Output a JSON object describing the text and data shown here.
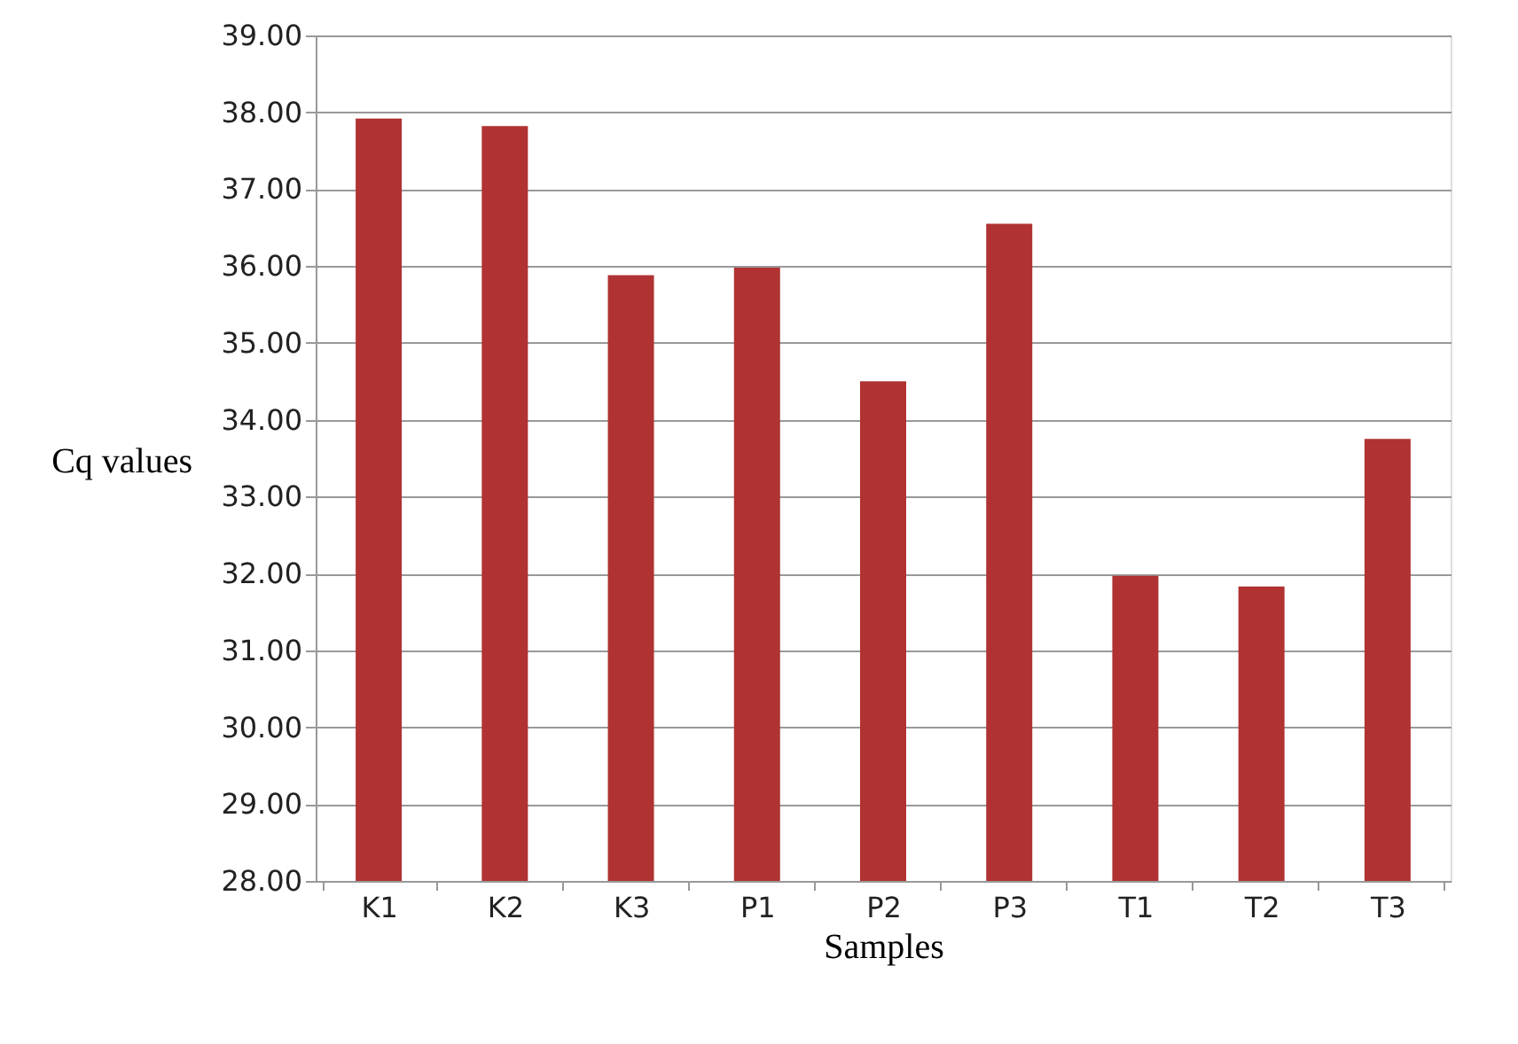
{
  "chart_data": {
    "type": "bar",
    "xlabel": "Samples",
    "ylabel": "Cq values",
    "categories": [
      "K1",
      "K2",
      "K3",
      "P1",
      "P2",
      "P3",
      "T1",
      "T2",
      "T3"
    ],
    "values": [
      37.92,
      37.82,
      35.88,
      35.98,
      34.5,
      36.55,
      31.97,
      31.83,
      33.75
    ],
    "color": "#b03232",
    "ylim": [
      28,
      39
    ],
    "yticks": [
      {
        "value": 28,
        "label": "28.00"
      },
      {
        "value": 29,
        "label": "29.00"
      },
      {
        "value": 30,
        "label": "30.00"
      },
      {
        "value": 31,
        "label": "31.00"
      },
      {
        "value": 32,
        "label": "32.00"
      },
      {
        "value": 33,
        "label": "33.00"
      },
      {
        "value": 34,
        "label": "34.00"
      },
      {
        "value": 35,
        "label": "35.00"
      },
      {
        "value": 36,
        "label": "36.00"
      },
      {
        "value": 37,
        "label": "37.00"
      },
      {
        "value": 38,
        "label": "38.00"
      },
      {
        "value": 39,
        "label": "39.00"
      }
    ],
    "grid": "y"
  }
}
